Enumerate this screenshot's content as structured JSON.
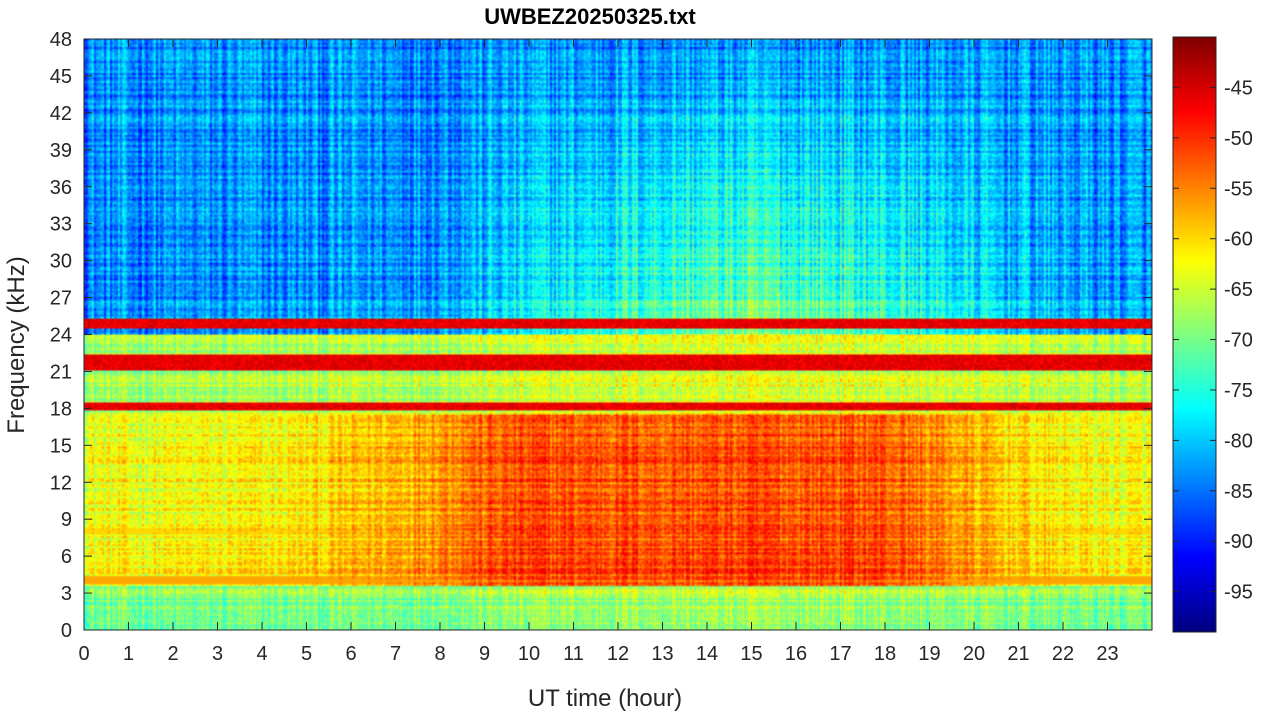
{
  "chart_data": {
    "type": "heatmap",
    "title": "UWBEZ20250325.txt",
    "xlabel": "UT time (hour)",
    "ylabel": "Frequency (kHz)",
    "xlim": [
      0,
      24
    ],
    "ylim": [
      0,
      48
    ],
    "x_ticks": [
      0,
      1,
      2,
      3,
      4,
      5,
      6,
      7,
      8,
      9,
      10,
      11,
      12,
      13,
      14,
      15,
      16,
      17,
      18,
      19,
      20,
      21,
      22,
      23
    ],
    "y_ticks": [
      0,
      3,
      6,
      9,
      12,
      15,
      18,
      21,
      24,
      27,
      30,
      33,
      36,
      39,
      42,
      45,
      48
    ],
    "colorbar": {
      "colormap": "jet",
      "range": [
        -99,
        -40
      ],
      "ticks": [
        -95,
        -90,
        -85,
        -80,
        -75,
        -70,
        -65,
        -60,
        -55,
        -50,
        -45
      ]
    },
    "features": {
      "narrowband_lines_khz": [
        18.2,
        21.4,
        22.1,
        24.9
      ],
      "background_high_freq_db": -88,
      "broadband_peak_db": -52,
      "broadband_peak_hours": [
        9,
        18.5
      ],
      "broadband_band_khz": [
        4,
        17
      ]
    }
  }
}
